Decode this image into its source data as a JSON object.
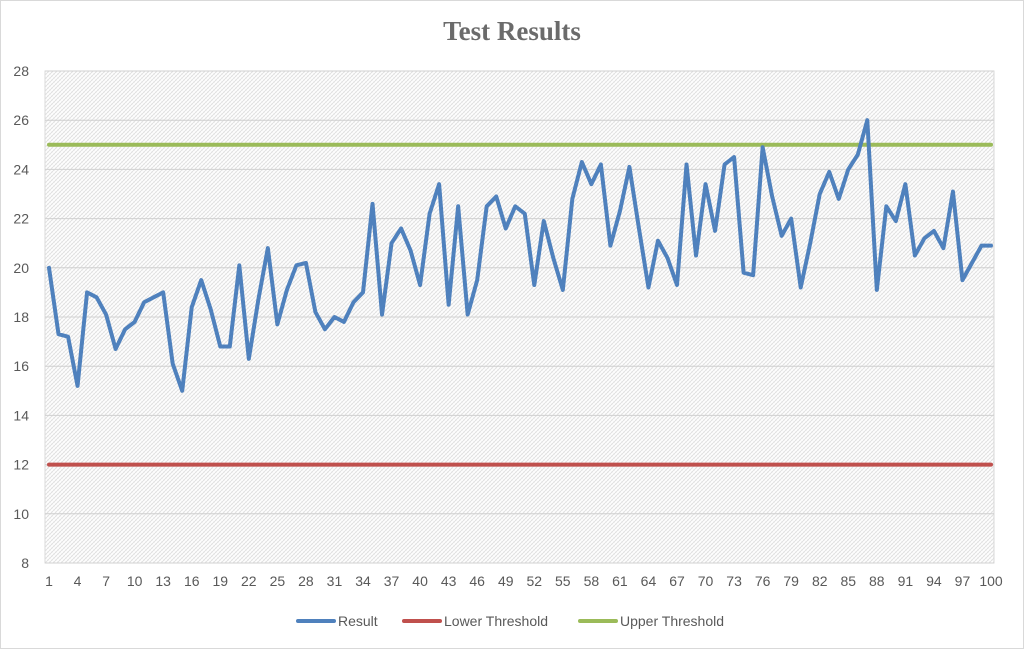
{
  "chart_data": {
    "type": "line",
    "title": "Test Results",
    "xlabel": "",
    "ylabel": "",
    "x": [
      1,
      2,
      3,
      4,
      5,
      6,
      7,
      8,
      9,
      10,
      11,
      12,
      13,
      14,
      15,
      16,
      17,
      18,
      19,
      20,
      21,
      22,
      23,
      24,
      25,
      26,
      27,
      28,
      29,
      30,
      31,
      32,
      33,
      34,
      35,
      36,
      37,
      38,
      39,
      40,
      41,
      42,
      43,
      44,
      45,
      46,
      47,
      48,
      49,
      50,
      51,
      52,
      53,
      54,
      55,
      56,
      57,
      58,
      59,
      60,
      61,
      62,
      63,
      64,
      65,
      66,
      67,
      68,
      69,
      70,
      71,
      72,
      73,
      74,
      75,
      76,
      77,
      78,
      79,
      80,
      81,
      82,
      83,
      84,
      85,
      86,
      87,
      88,
      89,
      90,
      91,
      92,
      93,
      94,
      95,
      96,
      97,
      98,
      99,
      100
    ],
    "x_tick_labels": [
      "1",
      "4",
      "7",
      "10",
      "13",
      "16",
      "19",
      "22",
      "25",
      "28",
      "31",
      "34",
      "37",
      "40",
      "43",
      "46",
      "49",
      "52",
      "55",
      "58",
      "61",
      "64",
      "67",
      "70",
      "73",
      "76",
      "79",
      "82",
      "85",
      "88",
      "91",
      "94",
      "97",
      "100"
    ],
    "ylim": [
      8,
      28
    ],
    "y_ticks": [
      8,
      10,
      12,
      14,
      16,
      18,
      20,
      22,
      24,
      26,
      28
    ],
    "grid": true,
    "legend_position": "bottom",
    "series": [
      {
        "name": "Result",
        "color": "#4f81bd",
        "values": [
          20.0,
          17.3,
          17.2,
          15.2,
          19.0,
          18.8,
          18.1,
          16.7,
          17.5,
          17.8,
          18.6,
          18.8,
          19.0,
          16.1,
          15.0,
          18.4,
          19.5,
          18.3,
          16.8,
          16.8,
          20.1,
          16.3,
          18.7,
          20.8,
          17.7,
          19.1,
          20.1,
          20.2,
          18.2,
          17.5,
          18.0,
          17.8,
          18.6,
          19.0,
          22.6,
          18.1,
          21.0,
          21.6,
          20.7,
          19.3,
          22.2,
          23.4,
          18.5,
          22.5,
          18.1,
          19.5,
          22.5,
          22.9,
          21.6,
          22.5,
          22.2,
          19.3,
          21.9,
          20.4,
          19.1,
          22.8,
          24.3,
          23.4,
          24.2,
          20.9,
          22.3,
          24.1,
          21.6,
          19.2,
          21.1,
          20.4,
          19.3,
          24.2,
          20.5,
          23.4,
          21.5,
          24.2,
          24.5,
          19.8,
          19.7,
          24.9,
          22.9,
          21.3,
          22.0,
          19.2,
          21.0,
          23.0,
          23.9,
          22.8,
          24.0,
          24.6,
          26.0,
          19.1,
          22.5,
          21.9,
          23.4,
          20.5,
          21.2,
          21.5,
          20.8,
          23.1,
          19.5,
          20.2,
          20.9,
          20.9
        ]
      },
      {
        "name": "Lower Threshold",
        "color": "#c0504d",
        "constant": 12
      },
      {
        "name": "Upper Threshold",
        "color": "#9bbb59",
        "constant": 25
      }
    ]
  }
}
